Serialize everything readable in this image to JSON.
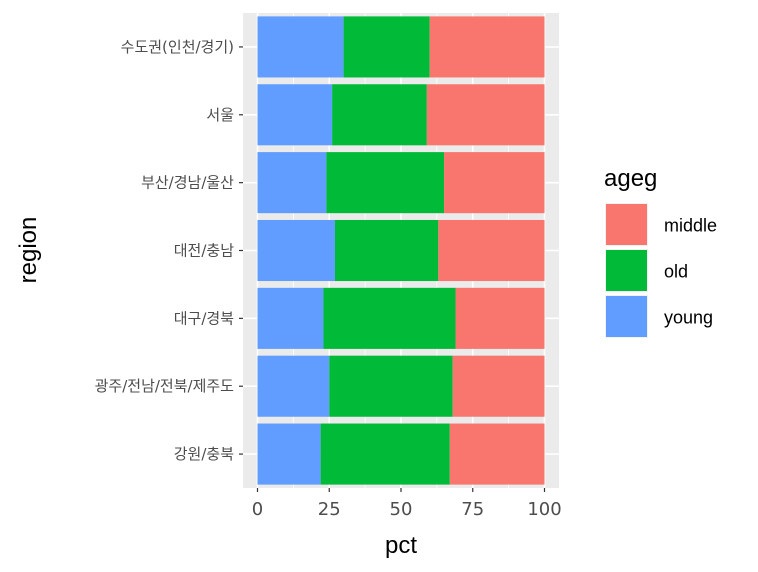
{
  "chart_data": {
    "type": "bar",
    "orientation": "horizontal",
    "stacked": true,
    "xlabel": "pct",
    "ylabel": "region",
    "xlim": [
      0,
      100
    ],
    "x_ticks": [
      0,
      25,
      50,
      75,
      100
    ],
    "grid": true,
    "legend_position": "right",
    "legend_title": "ageg",
    "categories": [
      "수도권(인천/경기)",
      "서울",
      "부산/경남/울산",
      "대전/충남",
      "대구/경북",
      "광주/전남/전북/제주도",
      "강원/충북"
    ],
    "series": [
      {
        "name": "young",
        "color": "#619CFF",
        "values": [
          30,
          26,
          24,
          27,
          23,
          25,
          22
        ]
      },
      {
        "name": "old",
        "color": "#00BA38",
        "values": [
          30,
          33,
          41,
          36,
          46,
          43,
          45
        ]
      },
      {
        "name": "middle",
        "color": "#F8766D",
        "values": [
          40,
          41,
          35,
          37,
          31,
          32,
          33
        ]
      }
    ],
    "legend_order": [
      "middle",
      "old",
      "young"
    ]
  }
}
